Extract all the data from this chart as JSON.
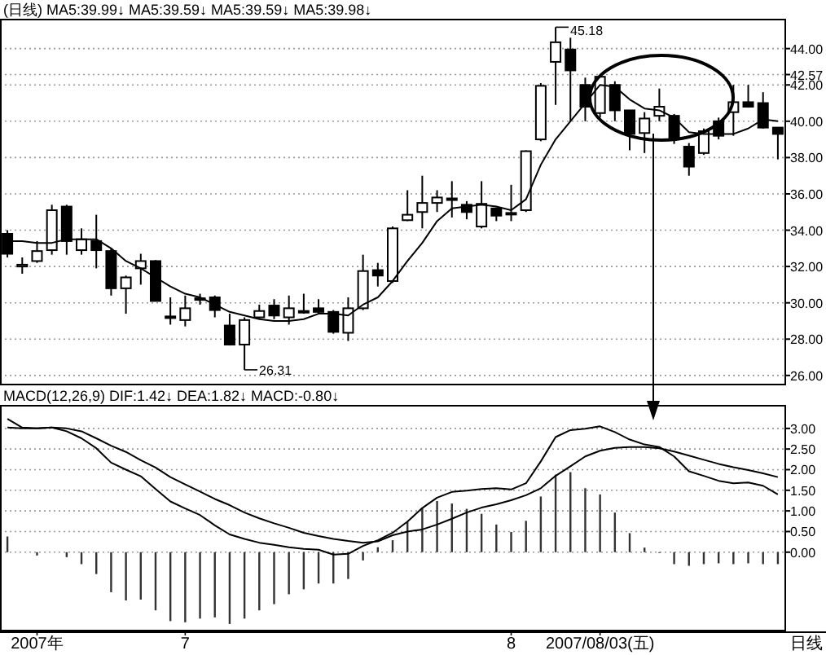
{
  "chart_data": [
    {
      "type": "candlestick",
      "title": "(日线) MA5:39.99↓ MA5:39.59↓ MA5:39.59↓ MA5:39.98↓",
      "categories": [
        null,
        null,
        null,
        null,
        null,
        null,
        null,
        null,
        null,
        null,
        null,
        null,
        null,
        null,
        null,
        null,
        null,
        null,
        null,
        null,
        null,
        null,
        null,
        null,
        null,
        null,
        null,
        null,
        null,
        null,
        null,
        null,
        null,
        null,
        null,
        null,
        null,
        null,
        null,
        null,
        null,
        null,
        null,
        null,
        null,
        null,
        null,
        null,
        null,
        null,
        null,
        null,
        null
      ],
      "ohlc": [
        [
          33.8,
          34.0,
          32.5,
          32.7
        ],
        [
          32.0,
          32.5,
          31.6,
          32.1
        ],
        [
          32.3,
          33.4,
          32.2,
          32.85
        ],
        [
          32.9,
          35.4,
          32.65,
          35.1
        ],
        [
          35.3,
          35.4,
          32.65,
          33.4
        ],
        [
          32.9,
          34.1,
          32.65,
          33.5
        ],
        [
          33.4,
          34.85,
          31.9,
          32.9
        ],
        [
          32.85,
          33.0,
          30.4,
          30.8
        ],
        [
          30.8,
          31.5,
          29.4,
          31.4
        ],
        [
          31.9,
          32.7,
          31.0,
          32.3
        ],
        [
          32.3,
          32.35,
          30.1,
          30.1
        ],
        [
          29.2,
          30.3,
          28.8,
          29.25
        ],
        [
          29.05,
          30.4,
          28.7,
          29.7
        ],
        [
          30.2,
          30.5,
          29.9,
          30.25
        ],
        [
          30.3,
          30.4,
          29.2,
          29.6
        ],
        [
          28.75,
          29.4,
          27.65,
          27.7
        ],
        [
          27.7,
          29.2,
          26.31,
          29.05
        ],
        [
          29.2,
          29.9,
          29.1,
          29.55
        ],
        [
          29.85,
          30.2,
          29.1,
          29.3
        ],
        [
          29.2,
          30.4,
          28.8,
          29.7
        ],
        [
          29.5,
          30.5,
          29.4,
          29.55
        ],
        [
          29.7,
          30.2,
          29.4,
          29.5
        ],
        [
          29.5,
          29.6,
          28.3,
          28.4
        ],
        [
          28.35,
          30.3,
          27.9,
          29.7
        ],
        [
          29.7,
          32.65,
          29.6,
          31.75
        ],
        [
          31.8,
          32.2,
          30.9,
          31.5
        ],
        [
          31.2,
          34.2,
          31.1,
          34.1
        ],
        [
          34.55,
          36.2,
          34.5,
          34.85
        ],
        [
          35.0,
          37.0,
          34.1,
          35.5
        ],
        [
          35.5,
          36.2,
          35.0,
          35.8
        ],
        [
          35.7,
          36.7,
          34.7,
          35.75
        ],
        [
          35.4,
          35.6,
          34.6,
          35.0
        ],
        [
          34.2,
          36.7,
          34.1,
          35.45
        ],
        [
          35.2,
          35.25,
          34.5,
          34.8
        ],
        [
          34.9,
          36.5,
          34.5,
          34.95
        ],
        [
          35.1,
          38.4,
          35.0,
          38.35
        ],
        [
          39.0,
          42.1,
          38.9,
          41.95
        ],
        [
          43.27,
          45.18,
          40.9,
          44.35
        ],
        [
          43.95,
          44.6,
          40.0,
          42.8
        ],
        [
          42.0,
          42.4,
          40.0,
          40.8
        ],
        [
          40.45,
          42.55,
          40.2,
          42.45
        ],
        [
          42.0,
          42.2,
          40.0,
          40.6
        ],
        [
          40.6,
          40.6,
          38.4,
          39.3
        ],
        [
          39.35,
          40.5,
          38.25,
          40.15
        ],
        [
          40.3,
          41.8,
          40.0,
          40.8
        ],
        [
          40.3,
          40.4,
          38.75,
          39.05
        ],
        [
          38.6,
          38.8,
          37.0,
          37.5
        ],
        [
          38.25,
          39.6,
          38.15,
          39.45
        ],
        [
          40.0,
          40.2,
          39.0,
          39.2
        ],
        [
          40.5,
          42.0,
          39.2,
          41.05
        ],
        [
          41.05,
          42.0,
          40.75,
          40.8
        ],
        [
          41.0,
          41.6,
          39.6,
          39.65
        ],
        [
          39.65,
          39.65,
          37.9,
          39.3
        ]
      ],
      "series": [
        {
          "type": "line",
          "color": "#000000",
          "values": [
            33.4,
            33.4,
            33.3,
            33.3,
            33.5,
            33.5,
            33.5,
            33.0,
            32.3,
            31.9,
            31.4,
            30.9,
            30.5,
            30.3,
            29.9,
            29.5,
            29.3,
            29.1,
            29.0,
            29.0,
            29.1,
            29.4,
            29.4,
            29.3,
            29.9,
            30.3,
            31.2,
            32.3,
            33.3,
            34.5,
            35.2,
            35.3,
            35.4,
            35.3,
            35.1,
            35.7,
            37.6,
            39.0,
            40.0,
            41.0,
            42.0,
            41.9,
            41.2,
            40.7,
            40.6,
            40.2,
            39.4,
            39.3,
            39.3,
            39.3,
            39.6,
            40.1,
            40.0
          ]
        }
      ],
      "ylim": [
        25.5,
        45.6
      ],
      "yticks": [
        {
          "value": 26,
          "label": "26.00"
        },
        {
          "value": 28,
          "label": "28.00"
        },
        {
          "value": 30,
          "label": "30.00"
        },
        {
          "value": 32,
          "label": "32.00"
        },
        {
          "value": 34,
          "label": "34.00"
        },
        {
          "value": 36,
          "label": "36.00"
        },
        {
          "value": 38,
          "label": "38.00"
        },
        {
          "value": 40,
          "label": "40.00"
        },
        {
          "value": 42,
          "label": "42.00"
        },
        {
          "value": 42.57,
          "label": "42.57"
        },
        {
          "value": 44,
          "label": "44.00"
        }
      ],
      "grid": "y",
      "tick_labels": "y",
      "annotations": [
        "45.18",
        "26.31"
      ]
    },
    {
      "type": "bar",
      "title": "MACD(12,26,9) DIF:1.42↓ DEA:1.82↓ MACD:-0.80↓",
      "categories": [
        null,
        null,
        "2007年",
        null,
        null,
        null,
        null,
        null,
        null,
        null,
        null,
        null,
        "7",
        null,
        null,
        null,
        null,
        null,
        null,
        null,
        null,
        null,
        null,
        null,
        null,
        null,
        null,
        null,
        null,
        null,
        null,
        null,
        null,
        null,
        "8",
        null,
        null,
        null,
        null,
        null,
        "2007/08/03(五)",
        null,
        null,
        null,
        null,
        null,
        null,
        null,
        null,
        null,
        null,
        null,
        null
      ],
      "color": "#333333",
      "values": [
        0.38,
        null,
        -0.08,
        null,
        -0.12,
        -0.29,
        -0.53,
        -0.97,
        -1.17,
        -1.15,
        -1.41,
        -1.67,
        -1.7,
        -1.61,
        -1.58,
        -1.74,
        -1.61,
        -1.41,
        -1.26,
        -1.02,
        -0.9,
        -0.76,
        -0.76,
        -0.65,
        -0.2,
        0.12,
        0.29,
        0.74,
        1.08,
        1.24,
        1.18,
        1.05,
        0.93,
        0.67,
        0.49,
        0.76,
        1.35,
        1.88,
        1.94,
        1.55,
        1.4,
        0.96,
        0.46,
        0.11,
        0.0,
        -0.29,
        -0.33,
        -0.29,
        -0.27,
        -0.29,
        -0.27,
        -0.29,
        -0.29
      ],
      "series": [
        {
          "type": "line",
          "color": "#000000",
          "values": [
            3.23,
            3.02,
            3.0,
            3.02,
            2.93,
            2.76,
            2.52,
            2.17,
            2.0,
            1.84,
            1.53,
            1.23,
            1.06,
            0.9,
            0.65,
            0.43,
            0.32,
            0.23,
            0.18,
            0.12,
            0.08,
            0.06,
            -0.06,
            -0.04,
            0.15,
            0.29,
            0.47,
            0.74,
            1.07,
            1.32,
            1.46,
            1.49,
            1.53,
            1.55,
            1.52,
            1.67,
            2.2,
            2.79,
            2.96,
            2.99,
            3.05,
            2.91,
            2.73,
            2.61,
            2.55,
            2.32,
            1.96,
            1.85,
            1.73,
            1.67,
            1.69,
            1.61,
            1.4
          ]
        },
        {
          "type": "line",
          "color": "#000000",
          "values": [
            3.02,
            3.0,
            3.0,
            3.02,
            3.0,
            2.93,
            2.76,
            2.58,
            2.43,
            2.23,
            2.05,
            1.82,
            1.64,
            1.47,
            1.29,
            1.14,
            0.96,
            0.82,
            0.7,
            0.59,
            0.47,
            0.39,
            0.32,
            0.27,
            0.23,
            0.26,
            0.41,
            0.5,
            0.55,
            0.67,
            0.81,
            0.96,
            1.08,
            1.16,
            1.26,
            1.38,
            1.55,
            1.85,
            2.08,
            2.32,
            2.46,
            2.53,
            2.55,
            2.55,
            2.52,
            2.44,
            2.34,
            2.24,
            2.14,
            2.06,
            1.99,
            1.91,
            1.82
          ]
        }
      ],
      "ylim": [
        -1.9,
        3.55
      ],
      "yticks": [
        {
          "value": 0,
          "label": "0.00"
        },
        {
          "value": 0.5,
          "label": "0.50"
        },
        {
          "value": 1,
          "label": "1.00"
        },
        {
          "value": 1.5,
          "label": "1.50"
        },
        {
          "value": 2,
          "label": "2.00"
        },
        {
          "value": 2.5,
          "label": "2.50"
        },
        {
          "value": 3,
          "label": "3.00"
        }
      ],
      "grid": "y",
      "annotations": [
        "日线"
      ]
    }
  ]
}
